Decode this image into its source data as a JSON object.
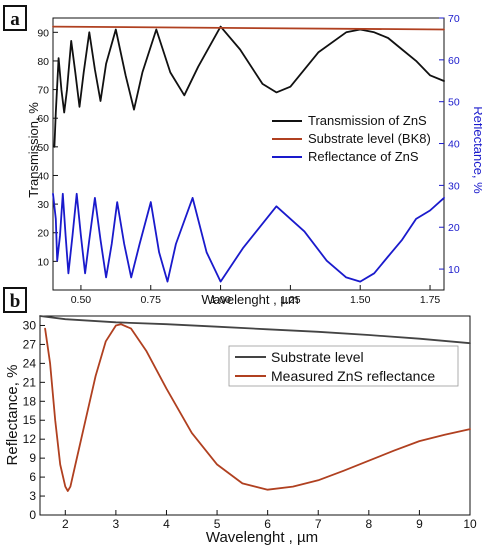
{
  "chart_data": [
    {
      "panel_label": "a",
      "type": "line",
      "xlabel": "Wavelenght , µm",
      "ylabel": "Transmission, %",
      "ylabel_right": "Reflectance, %",
      "xlim": [
        0.4,
        1.8
      ],
      "ylim": [
        0,
        95
      ],
      "ylim_right": [
        5,
        70
      ],
      "x_ticks": [
        "0.50",
        "0.75",
        "1.00",
        "1.25",
        "1.50",
        "1.75"
      ],
      "x_tick_values": [
        0.5,
        0.75,
        1.0,
        1.25,
        1.5,
        1.75
      ],
      "y_ticks": [
        "10",
        "20",
        "30",
        "40",
        "50",
        "60",
        "70",
        "80",
        "90"
      ],
      "y_tick_values": [
        10,
        20,
        30,
        40,
        50,
        60,
        70,
        80,
        90
      ],
      "y_right_ticks": [
        "10",
        "20",
        "30",
        "40",
        "50",
        "60",
        "70"
      ],
      "y_right_tick_values": [
        10,
        20,
        30,
        40,
        50,
        60,
        70
      ],
      "grid": false,
      "legend_position": "center-right",
      "series": [
        {
          "name": "Transmission of ZnS",
          "color": "#111111",
          "axis": "left",
          "points": [
            [
              0.405,
              50
            ],
            [
              0.41,
              62
            ],
            [
              0.42,
              81
            ],
            [
              0.43,
              70
            ],
            [
              0.44,
              62
            ],
            [
              0.45,
              70
            ],
            [
              0.465,
              87
            ],
            [
              0.48,
              76
            ],
            [
              0.495,
              64
            ],
            [
              0.51,
              76
            ],
            [
              0.53,
              90
            ],
            [
              0.55,
              77
            ],
            [
              0.57,
              66
            ],
            [
              0.59,
              79
            ],
            [
              0.625,
              91
            ],
            [
              0.66,
              75
            ],
            [
              0.69,
              63
            ],
            [
              0.72,
              76
            ],
            [
              0.77,
              91
            ],
            [
              0.82,
              76
            ],
            [
              0.87,
              68
            ],
            [
              0.92,
              78
            ],
            [
              1.0,
              92
            ],
            [
              1.07,
              84
            ],
            [
              1.15,
              72
            ],
            [
              1.2,
              69
            ],
            [
              1.25,
              71
            ],
            [
              1.35,
              83
            ],
            [
              1.45,
              90
            ],
            [
              1.5,
              91
            ],
            [
              1.55,
              90
            ],
            [
              1.6,
              88
            ],
            [
              1.65,
              84
            ],
            [
              1.7,
              80
            ],
            [
              1.75,
              75
            ],
            [
              1.8,
              73
            ]
          ]
        },
        {
          "name": "Substrate level (BK8)",
          "color": "#b04020",
          "axis": "left",
          "points": [
            [
              0.4,
              92
            ],
            [
              1.8,
              91
            ]
          ]
        },
        {
          "name": "Reflectance of ZnS",
          "color": "#1a1acc",
          "axis": "right",
          "points": [
            [
              0.4,
              28
            ],
            [
              0.41,
              22
            ],
            [
              0.415,
              12
            ],
            [
              0.425,
              18
            ],
            [
              0.435,
              28
            ],
            [
              0.445,
              18
            ],
            [
              0.455,
              9
            ],
            [
              0.47,
              18
            ],
            [
              0.485,
              28
            ],
            [
              0.5,
              18
            ],
            [
              0.515,
              9
            ],
            [
              0.53,
              17
            ],
            [
              0.55,
              27
            ],
            [
              0.57,
              17
            ],
            [
              0.59,
              8
            ],
            [
              0.61,
              16
            ],
            [
              0.63,
              26
            ],
            [
              0.655,
              16
            ],
            [
              0.68,
              8
            ],
            [
              0.71,
              16
            ],
            [
              0.75,
              26
            ],
            [
              0.78,
              14
            ],
            [
              0.81,
              7
            ],
            [
              0.84,
              16
            ],
            [
              0.9,
              27
            ],
            [
              0.95,
              14
            ],
            [
              1.0,
              7
            ],
            [
              1.08,
              15
            ],
            [
              1.2,
              25
            ],
            [
              1.3,
              19
            ],
            [
              1.38,
              12
            ],
            [
              1.45,
              8
            ],
            [
              1.5,
              7
            ],
            [
              1.55,
              9
            ],
            [
              1.6,
              13
            ],
            [
              1.65,
              17
            ],
            [
              1.7,
              22
            ],
            [
              1.75,
              24
            ],
            [
              1.8,
              27
            ]
          ]
        }
      ]
    },
    {
      "panel_label": "b",
      "type": "line",
      "xlabel": "Wavelenght , µm",
      "ylabel": "Reflectance, %",
      "xlim": [
        1.5,
        10
      ],
      "ylim": [
        0,
        31.5
      ],
      "x_ticks": [
        "2",
        "3",
        "4",
        "5",
        "6",
        "7",
        "8",
        "9",
        "10"
      ],
      "x_tick_values": [
        2,
        3,
        4,
        5,
        6,
        7,
        8,
        9,
        10
      ],
      "y_ticks": [
        "0",
        "3",
        "6",
        "9",
        "12",
        "15",
        "18",
        "21",
        "24",
        "27",
        "30"
      ],
      "y_tick_values": [
        0,
        3,
        6,
        9,
        12,
        15,
        18,
        21,
        24,
        27,
        30
      ],
      "grid": false,
      "legend_position": "top-right",
      "series": [
        {
          "name": "Substrate level",
          "color": "#444444",
          "points": [
            [
              1.5,
              31.5
            ],
            [
              2,
              31
            ],
            [
              3,
              30.5
            ],
            [
              4,
              30.2
            ],
            [
              5,
              29.8
            ],
            [
              6,
              29.4
            ],
            [
              7,
              29
            ],
            [
              8,
              28.5
            ],
            [
              9,
              27.9
            ],
            [
              10,
              27.2
            ]
          ]
        },
        {
          "name": "Measured ZnS reflectance",
          "color": "#b04020",
          "points": [
            [
              1.6,
              29.5
            ],
            [
              1.7,
              24
            ],
            [
              1.8,
              15
            ],
            [
              1.9,
              8
            ],
            [
              2.0,
              4.5
            ],
            [
              2.05,
              3.8
            ],
            [
              2.1,
              4.5
            ],
            [
              2.2,
              8
            ],
            [
              2.4,
              15
            ],
            [
              2.6,
              22
            ],
            [
              2.8,
              27.5
            ],
            [
              3.0,
              30
            ],
            [
              3.1,
              30.2
            ],
            [
              3.3,
              29.5
            ],
            [
              3.6,
              26
            ],
            [
              4.0,
              20
            ],
            [
              4.5,
              13
            ],
            [
              5.0,
              8
            ],
            [
              5.5,
              5
            ],
            [
              6.0,
              4
            ],
            [
              6.5,
              4.5
            ],
            [
              7.0,
              5.5
            ],
            [
              7.5,
              7
            ],
            [
              8.0,
              8.6
            ],
            [
              8.5,
              10.2
            ],
            [
              9.0,
              11.7
            ],
            [
              9.5,
              12.7
            ],
            [
              10.0,
              13.6
            ]
          ]
        }
      ]
    }
  ]
}
